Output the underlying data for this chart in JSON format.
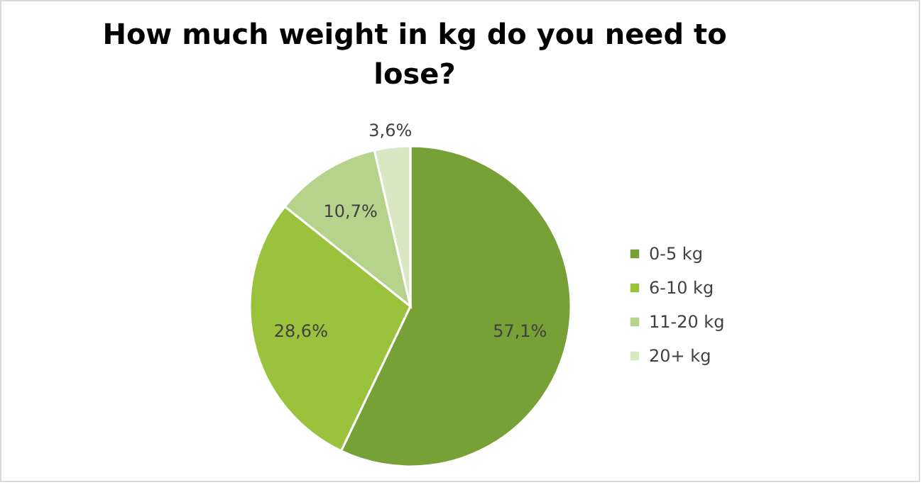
{
  "chart_data": {
    "type": "pie",
    "title": "How much weight in kg do you need to lose?",
    "categories": [
      "0-5 kg",
      "6-10 kg",
      "11-20 kg",
      "20+ kg"
    ],
    "values": [
      57.1,
      28.6,
      10.7,
      3.6
    ],
    "colors": [
      "#77a136",
      "#9bc23c",
      "#b5d38a",
      "#d7e8c3"
    ],
    "value_labels": [
      "57,1%",
      "28,6%",
      "10,7%",
      "3,6%"
    ],
    "legend": "right"
  }
}
